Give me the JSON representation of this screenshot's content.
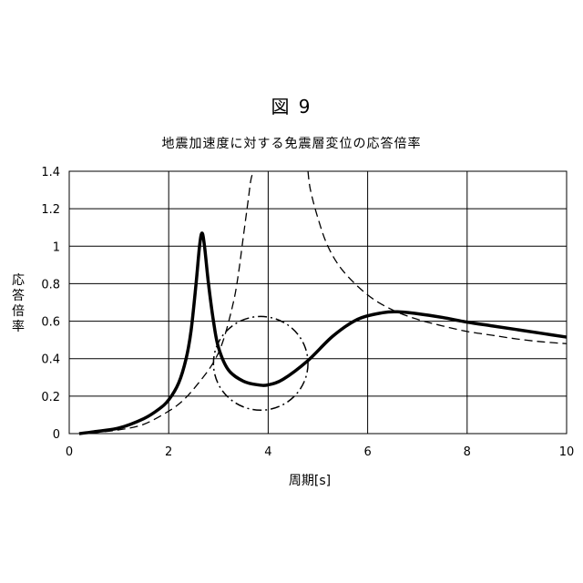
{
  "figure_label": "図 9",
  "chart_data": {
    "type": "line",
    "title": "地震加速度に対する免震層変位の応答倍率",
    "xlabel": "周期[s]",
    "ylabel": "応答倍率",
    "xlim": [
      0,
      10
    ],
    "ylim": [
      0,
      1.4
    ],
    "x_ticks": [
      "0",
      "2",
      "4",
      "6",
      "8",
      "10"
    ],
    "y_ticks": [
      "0",
      "0.2",
      "0.4",
      "0.6",
      "0.8",
      "1",
      "1.2",
      "1.4"
    ],
    "grid": true,
    "legend": "none",
    "series": [
      {
        "style": "solid-thick",
        "color": "#000000",
        "x": [
          0.2,
          0.5,
          1.0,
          1.5,
          1.8,
          2.0,
          2.2,
          2.35,
          2.45,
          2.55,
          2.62,
          2.67,
          2.72,
          2.8,
          2.9,
          3.0,
          3.2,
          3.5,
          3.8,
          4.0,
          4.3,
          4.8,
          5.3,
          5.8,
          6.3,
          6.6,
          7.0,
          7.5,
          8.0,
          8.5,
          9.0,
          9.5,
          10.0
        ],
        "y": [
          0.0,
          0.01,
          0.03,
          0.08,
          0.13,
          0.18,
          0.27,
          0.4,
          0.55,
          0.8,
          1.0,
          1.07,
          1.0,
          0.8,
          0.6,
          0.46,
          0.34,
          0.28,
          0.26,
          0.26,
          0.29,
          0.39,
          0.52,
          0.61,
          0.645,
          0.65,
          0.64,
          0.62,
          0.595,
          0.575,
          0.555,
          0.535,
          0.515
        ]
      },
      {
        "style": "dashed",
        "color": "#000000",
        "segments": [
          {
            "x": [
              0.2,
              0.5,
              1.0,
              1.5,
              2.0,
              2.3,
              2.6,
              2.9,
              3.1,
              3.3,
              3.4,
              3.5,
              3.6,
              3.65,
              3.7
            ],
            "y": [
              0.0,
              0.005,
              0.02,
              0.05,
              0.12,
              0.18,
              0.27,
              0.38,
              0.5,
              0.7,
              0.85,
              1.05,
              1.25,
              1.35,
              1.4
            ]
          },
          {
            "x": [
              4.8,
              4.85,
              5.0,
              5.2,
              5.5,
              6.0,
              6.5,
              7.0,
              7.5,
              8.0,
              8.5,
              9.0,
              9.5,
              10.0
            ],
            "y": [
              1.4,
              1.3,
              1.15,
              1.0,
              0.87,
              0.74,
              0.66,
              0.61,
              0.575,
              0.545,
              0.525,
              0.505,
              0.49,
              0.48
            ]
          }
        ]
      },
      {
        "style": "dash-dot",
        "color": "#000000",
        "shape": "ellipse",
        "center": [
          3.85,
          0.375
        ],
        "radius_x": 0.95,
        "radius_y": 0.25
      }
    ]
  }
}
